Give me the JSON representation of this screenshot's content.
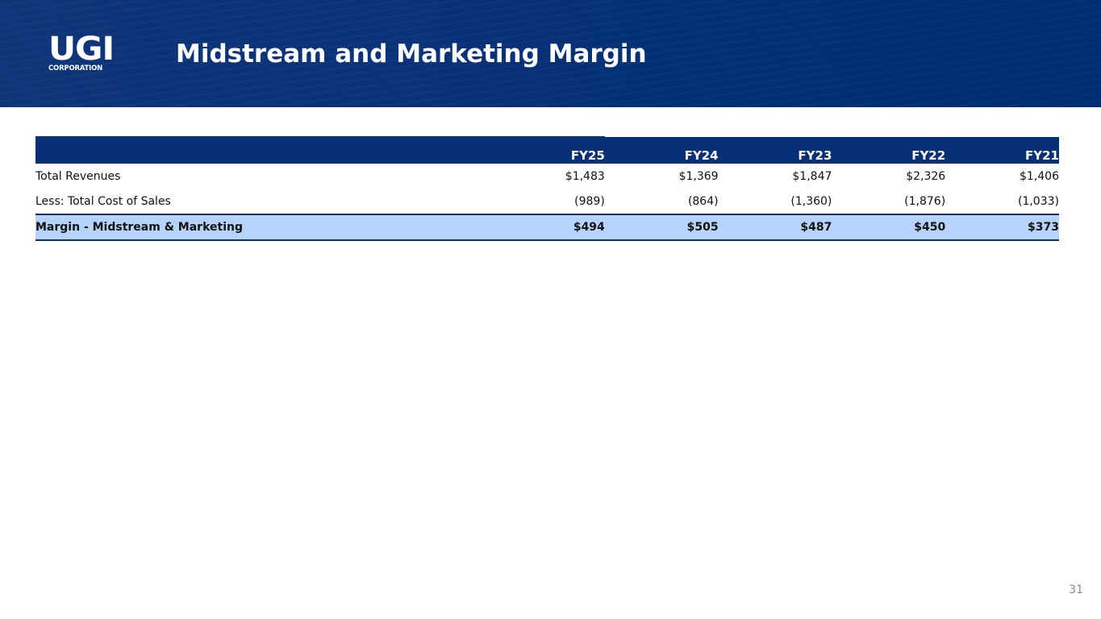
{
  "header": {
    "logo_text": "UGI",
    "logo_subtext": "CORPORATION",
    "title": "Midstream and Marketing Margin"
  },
  "table": {
    "columns": [
      "",
      "FY25",
      "FY24",
      "FY23",
      "FY22",
      "FY21"
    ],
    "rows": [
      {
        "label": "Total Revenues",
        "values": [
          "$1,483",
          "$1,369",
          "$1,847",
          "$2,326",
          "$1,406"
        ]
      },
      {
        "label": "Less: Total Cost of Sales",
        "values": [
          "(989)",
          "(864)",
          "(1,360)",
          "(1,876)",
          "(1,033)"
        ]
      }
    ],
    "total": {
      "label": "Margin - Midstream & Marketing",
      "values": [
        "$494",
        "$505",
        "$487",
        "$450",
        "$373"
      ]
    }
  },
  "footer": {
    "page_number": "31"
  },
  "colors": {
    "header_bg": "#063075",
    "table_header_bg": "#063075",
    "total_row_bg": "#b5d3fb",
    "rule": "#0f2e63"
  }
}
